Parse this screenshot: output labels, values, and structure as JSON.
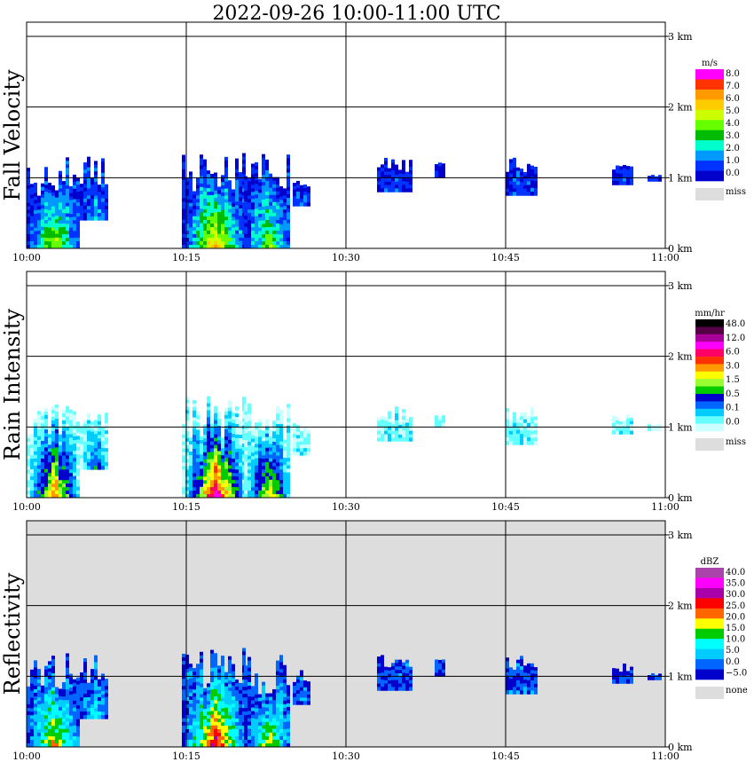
{
  "title": "2022-09-26   10:00-11:00 UTC",
  "x_ticks": [
    "10:00",
    "10:15",
    "10:30",
    "10:45",
    "11:00"
  ],
  "alt_ticks": [
    "0 km",
    "1 km",
    "2 km",
    "3 km"
  ],
  "chart_data": [
    {
      "type": "heatmap",
      "ylabel": "Fall Velocity",
      "background": "#ffffff",
      "colorbar": {
        "unit": "m/s",
        "labels": [
          "8.0",
          "7.0",
          "6.0",
          "5.0",
          "4.0",
          "3.0",
          "2.0",
          "1.0",
          "0.0"
        ],
        "colors": [
          "#ff00ff",
          "#ff3300",
          "#ff9900",
          "#ffcc00",
          "#ccff00",
          "#66ff00",
          "#00bb00",
          "#00ffcc",
          "#0099ff",
          "#0033ff",
          "#0000cc"
        ],
        "missing_label": "miss",
        "missing_color": "#dddddd"
      },
      "xlim": [
        "10:00",
        "11:00"
      ],
      "ylim_km": [
        0,
        3.2
      ]
    },
    {
      "type": "heatmap",
      "ylabel": "Rain Intensity",
      "background": "#ffffff",
      "colorbar": {
        "unit": "mm/hr",
        "labels": [
          "48.0",
          "12.0",
          "6.0",
          "3.0",
          "1.5",
          "0.5",
          "0.1",
          "0.0"
        ],
        "colors": [
          "#000000",
          "#550044",
          "#aa0099",
          "#ff00ff",
          "#ff0066",
          "#ff3300",
          "#ff9900",
          "#ffff00",
          "#99ff33",
          "#00cc00",
          "#0000cc",
          "#0066ff",
          "#00ccff",
          "#66ffff",
          "#ccffff"
        ],
        "missing_label": "miss",
        "missing_color": "#dddddd"
      },
      "xlim": [
        "10:00",
        "11:00"
      ],
      "ylim_km": [
        0,
        3.2
      ]
    },
    {
      "type": "heatmap",
      "ylabel": "Reflectivity",
      "background": "#dddddd",
      "colorbar": {
        "unit": "dBZ",
        "labels": [
          "40.0",
          "35.0",
          "30.0",
          "25.0",
          "20.0",
          "15.0",
          "10.0",
          "5.0",
          "0.0",
          "−5.0"
        ],
        "colors": [
          "#aa44aa",
          "#ff00ff",
          "#aa00aa",
          "#ff0000",
          "#ff6600",
          "#ffff00",
          "#00cc00",
          "#00ffff",
          "#00ccff",
          "#0066ff",
          "#0000cc"
        ],
        "missing_label": "none",
        "missing_color": "#dddddd"
      },
      "xlim": [
        "10:00",
        "11:00"
      ],
      "ylim_km": [
        0,
        3.2
      ]
    }
  ]
}
